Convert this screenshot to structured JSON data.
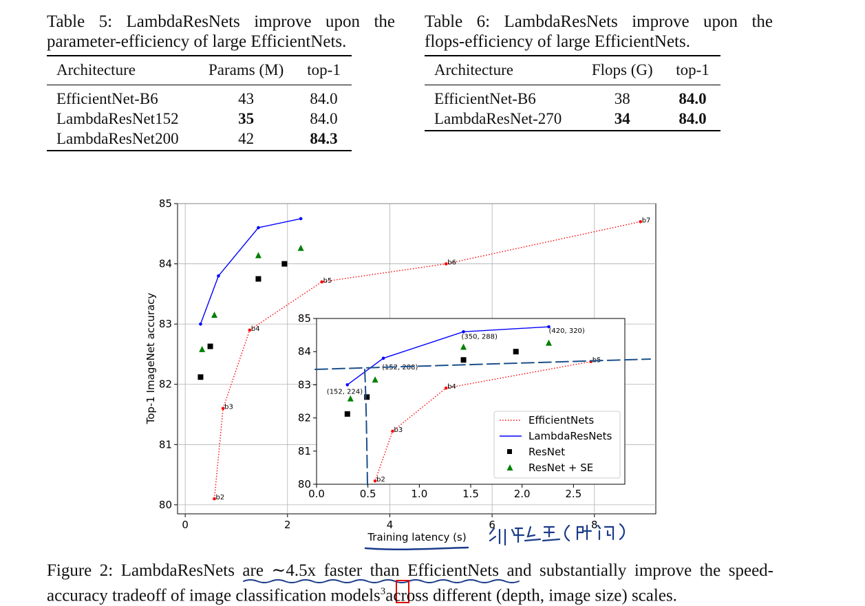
{
  "table5": {
    "caption_line1": "Table 5:  LambdaResNets improve upon the",
    "caption_line2": "parameter-efficiency of large EfficientNets.",
    "headers": [
      "Architecture",
      "Params (M)",
      "top-1"
    ],
    "rows": [
      {
        "arch": "EfficientNet-B6",
        "params": "43",
        "top1": "84.0",
        "bold_params": false,
        "bold_top1": false
      },
      {
        "arch": "LambdaResNet152",
        "params": "35",
        "top1": "84.0",
        "bold_params": true,
        "bold_top1": false
      },
      {
        "arch": "LambdaResNet200",
        "params": "42",
        "top1": "84.3",
        "bold_params": false,
        "bold_top1": true
      }
    ]
  },
  "table6": {
    "caption_line1": "Table 6:  LambdaResNets improve upon the",
    "caption_line2": "flops-efficiency of large EfficientNets.",
    "headers": [
      "Architecture",
      "Flops (G)",
      "top-1"
    ],
    "rows": [
      {
        "arch": "EfficientNet-B6",
        "flops": "38",
        "top1": "84.0",
        "bold_flops": false,
        "bold_top1": true
      },
      {
        "arch": "LambdaResNet-270",
        "flops": "34",
        "top1": "84.0",
        "bold_flops": true,
        "bold_top1": true
      }
    ]
  },
  "chart_data": [
    {
      "type": "scatter",
      "panel": "main",
      "xlabel": "Training latency (s)",
      "ylabel": "Top-1 ImageNet accuracy",
      "xlim": [
        -0.15,
        9.2
      ],
      "ylim": [
        79.85,
        85.0
      ],
      "xticks": [
        0,
        2,
        4,
        6,
        8
      ],
      "yticks": [
        80,
        81,
        82,
        83,
        84,
        85
      ],
      "grid": true,
      "series": [
        {
          "name": "EfficientNets",
          "style": "dotted-line",
          "color": "#ff0000",
          "points": [
            [
              0.57,
              80.1
            ],
            [
              0.74,
              81.6
            ],
            [
              1.26,
              82.9
            ],
            [
              2.67,
              83.7
            ],
            [
              5.1,
              84.0
            ],
            [
              8.9,
              84.7
            ]
          ],
          "labels": [
            "b2",
            "b3",
            "b4",
            "b5",
            "b6",
            "b7"
          ]
        },
        {
          "name": "LambdaResNets",
          "style": "solid-line",
          "color": "#0000ff",
          "points": [
            [
              0.3,
              83.0
            ],
            [
              0.65,
              83.8
            ],
            [
              1.43,
              84.6
            ],
            [
              2.26,
              84.75
            ]
          ]
        },
        {
          "name": "ResNet",
          "style": "square-marker",
          "color": "#000000",
          "points": [
            [
              0.3,
              82.12
            ],
            [
              0.49,
              82.63
            ],
            [
              1.43,
              83.75
            ],
            [
              1.94,
              84.0
            ]
          ]
        },
        {
          "name": "ResNet + SE",
          "style": "triangle-marker",
          "color": "#008000",
          "points": [
            [
              0.33,
              82.58
            ],
            [
              0.57,
              83.15
            ],
            [
              1.43,
              84.14
            ],
            [
              2.26,
              84.26
            ]
          ]
        }
      ]
    },
    {
      "type": "scatter",
      "panel": "inset",
      "xlim": [
        0.0,
        3.0
      ],
      "ylim": [
        80.0,
        85.0
      ],
      "xticks": [
        0.0,
        0.5,
        1.0,
        1.5,
        2.0,
        2.5
      ],
      "ytick_values": [
        80,
        81,
        82,
        83,
        84,
        85
      ],
      "xtick_labels": [
        "0.0",
        "0.5",
        "1.0",
        "1.5",
        "2.0",
        "2.5"
      ],
      "ytick_labels": [
        "80",
        "81",
        "82",
        "83",
        "84",
        "85"
      ],
      "series": [
        {
          "name": "EfficientNets",
          "style": "dotted-line",
          "color": "#ff0000",
          "points": [
            [
              0.57,
              80.1
            ],
            [
              0.74,
              81.6
            ],
            [
              1.26,
              82.9
            ],
            [
              2.67,
              83.7
            ]
          ],
          "labels": [
            "b2",
            "b3",
            "b4",
            "b5"
          ]
        },
        {
          "name": "LambdaResNets",
          "style": "solid-line",
          "color": "#0000ff",
          "points": [
            [
              0.3,
              83.0
            ],
            [
              0.65,
              83.8
            ],
            [
              1.43,
              84.6
            ],
            [
              2.26,
              84.75
            ]
          ],
          "labels": [
            "(152, 224)",
            "(152, 288)",
            "(350, 288)",
            "(420, 320)"
          ]
        },
        {
          "name": "ResNet",
          "style": "square-marker",
          "color": "#000000",
          "points": [
            [
              0.3,
              82.12
            ],
            [
              0.49,
              82.63
            ],
            [
              1.43,
              83.75
            ],
            [
              1.94,
              84.0
            ]
          ]
        },
        {
          "name": "ResNet + SE",
          "style": "triangle-marker",
          "color": "#008000",
          "points": [
            [
              0.33,
              82.58
            ],
            [
              0.57,
              83.15
            ],
            [
              1.43,
              84.14
            ],
            [
              2.26,
              84.26
            ]
          ]
        }
      ],
      "legend": {
        "placement": "lower-right",
        "entries": [
          "EfficientNets",
          "LambdaResNets",
          "ResNet",
          "ResNet + SE"
        ]
      }
    }
  ],
  "annotation": {
    "handwritten_note": "训练延迟(时间)",
    "ink_color": "#1a3a8a",
    "box_color": "#e00000"
  },
  "figure_caption": {
    "line1": "Figure 2: LambdaResNets are ∼4.5x faster than EfficientNets and substantially improve the speed-",
    "line2_part1": "accuracy tradeoff of image classification models",
    "footnote": "3",
    "line2_part2": "across different (depth, image size) scales."
  }
}
